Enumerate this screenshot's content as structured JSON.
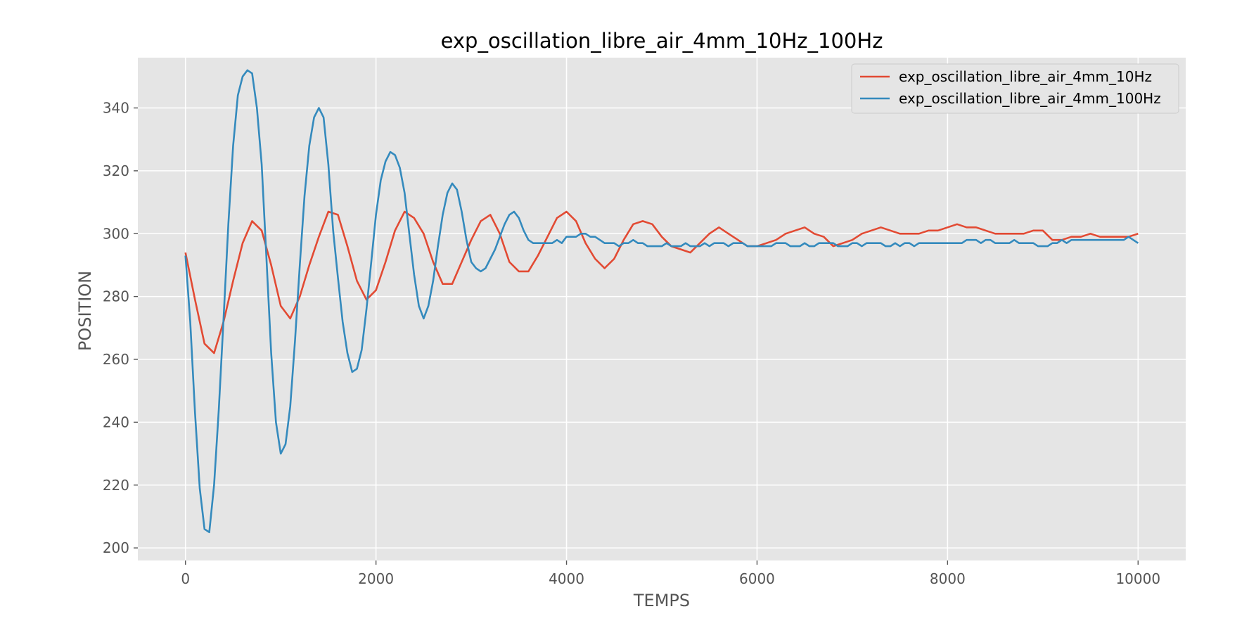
{
  "chart_data": {
    "type": "line",
    "title": "exp_oscillation_libre_air_4mm_10Hz_100Hz",
    "xlabel": "TEMPS",
    "ylabel": "POSITION",
    "xlim": [
      -500,
      10500
    ],
    "ylim": [
      196,
      356
    ],
    "xticks": [
      0,
      2000,
      4000,
      6000,
      8000,
      10000
    ],
    "xtick_labels": [
      "0",
      "2000",
      "4000",
      "6000",
      "8000",
      "10000"
    ],
    "yticks": [
      200,
      220,
      240,
      260,
      280,
      300,
      320,
      340
    ],
    "ytick_labels": [
      "200",
      "220",
      "240",
      "260",
      "280",
      "300",
      "320",
      "340"
    ],
    "grid": true,
    "legend": "top-right",
    "series": [
      {
        "name": "exp_oscillation_libre_air_4mm_10Hz",
        "color": "#E24A33",
        "x": [
          0,
          100,
          200,
          300,
          400,
          500,
          600,
          700,
          800,
          900,
          1000,
          1100,
          1200,
          1300,
          1400,
          1500,
          1600,
          1700,
          1800,
          1900,
          2000,
          2100,
          2200,
          2300,
          2400,
          2500,
          2600,
          2700,
          2800,
          2900,
          3000,
          3100,
          3200,
          3300,
          3400,
          3500,
          3600,
          3700,
          3800,
          3900,
          4000,
          4100,
          4200,
          4300,
          4400,
          4500,
          4600,
          4700,
          4800,
          4900,
          5000,
          5100,
          5200,
          5300,
          5400,
          5500,
          5600,
          5700,
          5800,
          5900,
          6000,
          6100,
          6200,
          6300,
          6400,
          6500,
          6600,
          6700,
          6800,
          6900,
          7000,
          7100,
          7200,
          7300,
          7400,
          7500,
          7600,
          7700,
          7800,
          7900,
          8000,
          8100,
          8200,
          8300,
          8400,
          8500,
          8600,
          8700,
          8800,
          8900,
          9000,
          9100,
          9200,
          9300,
          9400,
          9500,
          9600,
          9700,
          9800,
          9900,
          10000
        ],
        "y": [
          294,
          279,
          265,
          262,
          272,
          285,
          297,
          304,
          301,
          290,
          277,
          273,
          280,
          290,
          299,
          307,
          306,
          296,
          285,
          279,
          282,
          291,
          301,
          307,
          305,
          300,
          291,
          284,
          284,
          291,
          298,
          304,
          306,
          300,
          291,
          288,
          288,
          293,
          299,
          305,
          307,
          304,
          297,
          292,
          289,
          292,
          298,
          303,
          304,
          303,
          299,
          296,
          295,
          294,
          297,
          300,
          302,
          300,
          298,
          296,
          296,
          297,
          298,
          300,
          301,
          302,
          300,
          299,
          296,
          297,
          298,
          300,
          301,
          302,
          301,
          300,
          300,
          300,
          301,
          301,
          302,
          303,
          302,
          302,
          301,
          300,
          300,
          300,
          300,
          301,
          301,
          298,
          298,
          299,
          299,
          300,
          299,
          299,
          299,
          299,
          300
        ]
      },
      {
        "name": "exp_oscillation_libre_air_4mm_100Hz",
        "color": "#348ABD",
        "x": [
          0,
          50,
          100,
          150,
          200,
          250,
          300,
          350,
          400,
          450,
          500,
          550,
          600,
          650,
          700,
          750,
          800,
          850,
          900,
          950,
          1000,
          1050,
          1100,
          1150,
          1200,
          1250,
          1300,
          1350,
          1400,
          1450,
          1500,
          1550,
          1600,
          1650,
          1700,
          1750,
          1800,
          1850,
          1900,
          1950,
          2000,
          2050,
          2100,
          2150,
          2200,
          2250,
          2300,
          2350,
          2400,
          2450,
          2500,
          2550,
          2600,
          2650,
          2700,
          2750,
          2800,
          2850,
          2900,
          2950,
          3000,
          3050,
          3100,
          3150,
          3200,
          3250,
          3300,
          3350,
          3400,
          3450,
          3500,
          3550,
          3600,
          3650,
          3700,
          3750,
          3800,
          3850,
          3900,
          3950,
          4000,
          4050,
          4100,
          4150,
          4200,
          4250,
          4300,
          4350,
          4400,
          4450,
          4500,
          4550,
          4600,
          4650,
          4700,
          4750,
          4800,
          4850,
          4900,
          4950,
          5000,
          5050,
          5100,
          5150,
          5200,
          5250,
          5300,
          5350,
          5400,
          5450,
          5500,
          5550,
          5600,
          5650,
          5700,
          5750,
          5800,
          5850,
          5900,
          5950,
          6000,
          6050,
          6100,
          6150,
          6200,
          6250,
          6300,
          6350,
          6400,
          6450,
          6500,
          6550,
          6600,
          6650,
          6700,
          6750,
          6800,
          6850,
          6900,
          6950,
          7000,
          7050,
          7100,
          7150,
          7200,
          7250,
          7300,
          7350,
          7400,
          7450,
          7500,
          7550,
          7600,
          7650,
          7700,
          7750,
          7800,
          7850,
          7900,
          7950,
          8000,
          8050,
          8100,
          8150,
          8200,
          8250,
          8300,
          8350,
          8400,
          8450,
          8500,
          8550,
          8600,
          8650,
          8700,
          8750,
          8800,
          8850,
          8900,
          8950,
          9000,
          9050,
          9100,
          9150,
          9200,
          9250,
          9300,
          9350,
          9400,
          9450,
          9500,
          9550,
          9600,
          9650,
          9700,
          9750,
          9800,
          9850,
          9900,
          9950,
          10000
        ],
        "y": [
          293,
          272,
          243,
          219,
          206,
          205,
          220,
          244,
          273,
          303,
          328,
          344,
          350,
          352,
          351,
          340,
          322,
          292,
          262,
          240,
          230,
          233,
          245,
          266,
          290,
          312,
          328,
          337,
          340,
          337,
          322,
          301,
          286,
          272,
          262,
          256,
          257,
          263,
          276,
          291,
          306,
          317,
          323,
          326,
          325,
          321,
          313,
          300,
          287,
          277,
          273,
          277,
          285,
          296,
          306,
          313,
          316,
          314,
          307,
          298,
          291,
          289,
          288,
          289,
          292,
          295,
          299,
          303,
          306,
          307,
          305,
          301,
          298,
          297,
          297,
          297,
          297,
          297,
          298,
          297,
          299,
          299,
          299,
          300,
          300,
          299,
          299,
          298,
          297,
          297,
          297,
          296,
          297,
          297,
          298,
          297,
          297,
          296,
          296,
          296,
          296,
          297,
          296,
          296,
          296,
          297,
          296,
          296,
          296,
          297,
          296,
          297,
          297,
          297,
          296,
          297,
          297,
          297,
          296,
          296,
          296,
          296,
          296,
          296,
          297,
          297,
          297,
          296,
          296,
          296,
          297,
          296,
          296,
          297,
          297,
          297,
          297,
          296,
          296,
          296,
          297,
          297,
          296,
          297,
          297,
          297,
          297,
          296,
          296,
          297,
          296,
          297,
          297,
          296,
          297,
          297,
          297,
          297,
          297,
          297,
          297,
          297,
          297,
          297,
          298,
          298,
          298,
          297,
          298,
          298,
          297,
          297,
          297,
          297,
          298,
          297,
          297,
          297,
          297,
          296,
          296,
          296,
          297,
          297,
          298,
          297,
          298,
          298,
          298,
          298,
          298,
          298,
          298,
          298,
          298,
          298,
          298,
          298,
          299,
          298,
          297
        ]
      }
    ]
  }
}
